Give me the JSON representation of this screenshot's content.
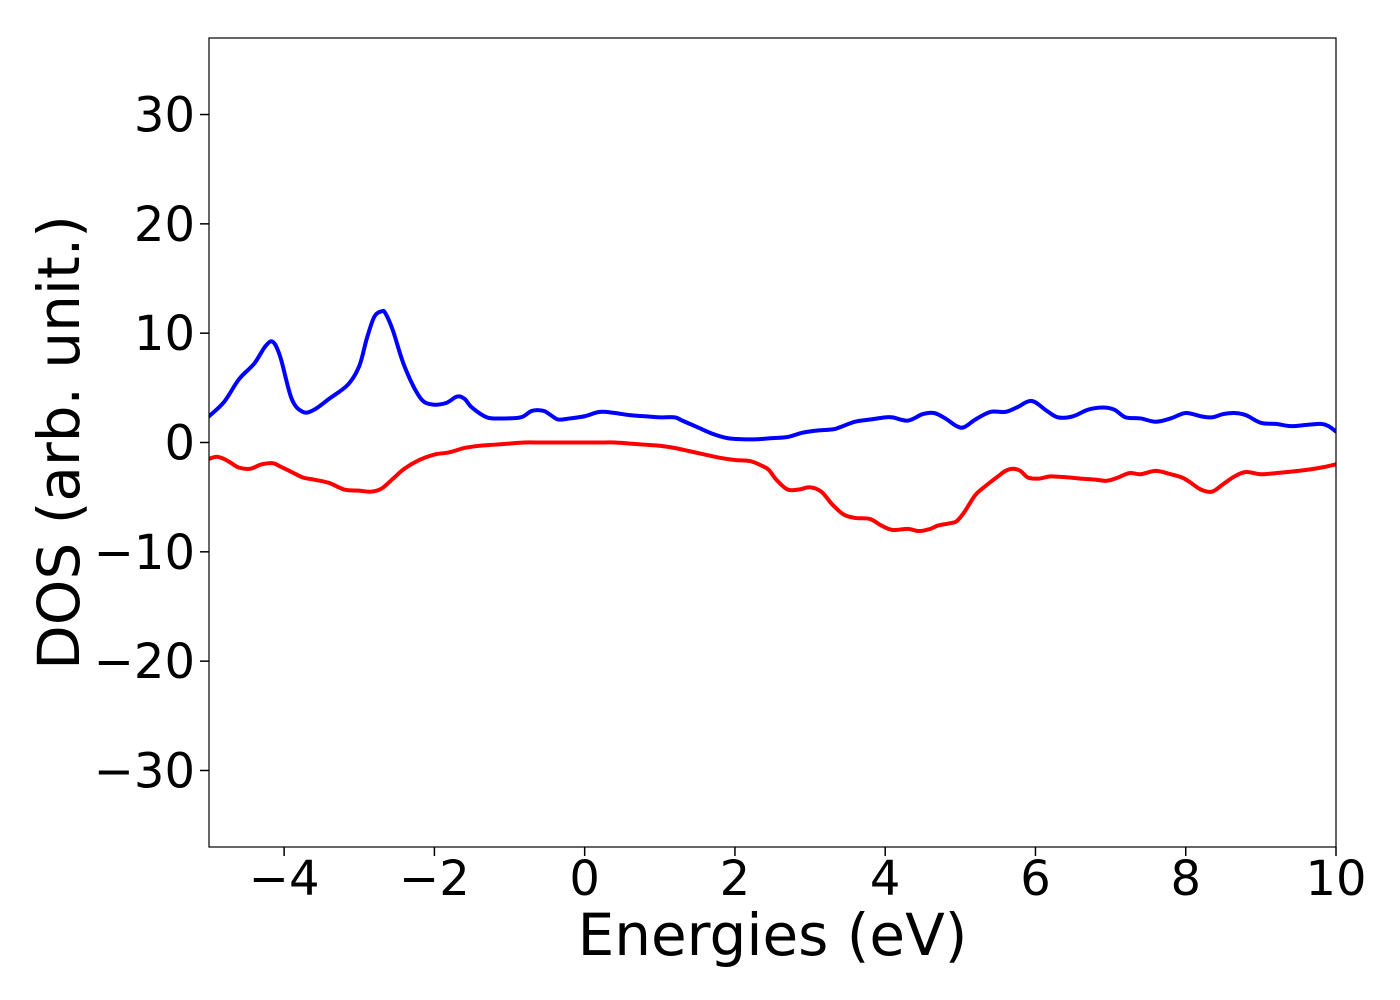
{
  "chart_data": {
    "type": "line",
    "title": "",
    "xlabel": "Energies (eV)",
    "ylabel": "DOS (arb. unit.)",
    "xlim": [
      -5,
      10
    ],
    "ylim": [
      -37,
      37
    ],
    "xticks": [
      -4,
      -2,
      0,
      2,
      4,
      6,
      8,
      10
    ],
    "xtick_labels": [
      "−4",
      "−2",
      "0",
      "2",
      "4",
      "6",
      "8",
      "10"
    ],
    "yticks": [
      -30,
      -20,
      -10,
      0,
      10,
      20,
      30
    ],
    "ytick_labels": [
      "−30",
      "−20",
      "−10",
      "0",
      "10",
      "20",
      "30"
    ],
    "grid": false,
    "legend": "none",
    "series": [
      {
        "color": "#0000ff",
        "x": [
          -5.0,
          -4.8,
          -4.6,
          -4.4,
          -4.25,
          -4.15,
          -4.05,
          -3.9,
          -3.75,
          -3.6,
          -3.4,
          -3.15,
          -3.0,
          -2.9,
          -2.8,
          -2.7,
          -2.65,
          -2.55,
          -2.4,
          -2.2,
          -2.05,
          -1.85,
          -1.7,
          -1.6,
          -1.5,
          -1.3,
          -1.1,
          -0.85,
          -0.7,
          -0.55,
          -0.45,
          -0.35,
          -0.2,
          0.0,
          0.2,
          0.4,
          0.6,
          0.8,
          1.0,
          1.2,
          1.3,
          1.5,
          1.7,
          1.9,
          2.1,
          2.3,
          2.5,
          2.7,
          2.9,
          3.1,
          3.3,
          3.4,
          3.6,
          3.8,
          4.0,
          4.1,
          4.3,
          4.5,
          4.65,
          4.8,
          4.95,
          5.05,
          5.2,
          5.4,
          5.6,
          5.75,
          5.95,
          6.15,
          6.3,
          6.5,
          6.7,
          6.9,
          7.05,
          7.2,
          7.4,
          7.6,
          7.8,
          8.0,
          8.2,
          8.35,
          8.5,
          8.65,
          8.8,
          9.0,
          9.2,
          9.4,
          9.6,
          9.8,
          9.9,
          10.0
        ],
        "values": [
          2.4,
          3.7,
          5.8,
          7.2,
          8.8,
          9.2,
          7.8,
          4.0,
          2.8,
          3.0,
          4.0,
          5.3,
          7.0,
          9.5,
          11.5,
          12.0,
          11.8,
          10.2,
          7.0,
          4.2,
          3.5,
          3.6,
          4.2,
          4.0,
          3.2,
          2.3,
          2.2,
          2.3,
          2.9,
          2.9,
          2.5,
          2.1,
          2.2,
          2.4,
          2.8,
          2.7,
          2.5,
          2.4,
          2.3,
          2.3,
          2.0,
          1.4,
          0.8,
          0.4,
          0.3,
          0.3,
          0.4,
          0.5,
          0.9,
          1.1,
          1.2,
          1.4,
          1.9,
          2.1,
          2.3,
          2.3,
          2.0,
          2.6,
          2.7,
          2.2,
          1.5,
          1.4,
          2.1,
          2.8,
          2.8,
          3.2,
          3.8,
          2.9,
          2.3,
          2.4,
          3.0,
          3.2,
          3.0,
          2.3,
          2.2,
          1.9,
          2.2,
          2.7,
          2.4,
          2.3,
          2.6,
          2.7,
          2.5,
          1.8,
          1.7,
          1.5,
          1.6,
          1.7,
          1.5,
          1.0
        ]
      },
      {
        "color": "#ff0000",
        "x": [
          -5.0,
          -4.9,
          -4.8,
          -4.7,
          -4.6,
          -4.45,
          -4.3,
          -4.15,
          -4.05,
          -3.9,
          -3.75,
          -3.6,
          -3.4,
          -3.2,
          -3.0,
          -2.85,
          -2.7,
          -2.55,
          -2.4,
          -2.2,
          -2.0,
          -1.8,
          -1.6,
          -1.4,
          -1.2,
          -1.0,
          -0.8,
          -0.6,
          -0.4,
          -0.2,
          0.0,
          0.2,
          0.4,
          0.6,
          0.8,
          1.0,
          1.2,
          1.4,
          1.6,
          1.8,
          2.0,
          2.2,
          2.35,
          2.45,
          2.55,
          2.7,
          2.85,
          3.0,
          3.15,
          3.3,
          3.45,
          3.6,
          3.8,
          3.95,
          4.1,
          4.3,
          4.45,
          4.6,
          4.7,
          4.85,
          4.95,
          5.05,
          5.2,
          5.35,
          5.5,
          5.6,
          5.7,
          5.8,
          5.9,
          6.05,
          6.2,
          6.45,
          6.6,
          6.8,
          6.95,
          7.1,
          7.25,
          7.4,
          7.6,
          7.8,
          7.95,
          8.05,
          8.2,
          8.35,
          8.5,
          8.65,
          8.8,
          9.0,
          9.2,
          9.5,
          9.8,
          10.0
        ],
        "values": [
          -1.5,
          -1.3,
          -1.5,
          -1.9,
          -2.3,
          -2.4,
          -2.0,
          -1.9,
          -2.2,
          -2.7,
          -3.2,
          -3.4,
          -3.7,
          -4.3,
          -4.4,
          -4.5,
          -4.2,
          -3.3,
          -2.4,
          -1.6,
          -1.1,
          -0.9,
          -0.5,
          -0.3,
          -0.2,
          -0.1,
          0.0,
          0.0,
          0.0,
          0.0,
          0.0,
          0.0,
          0.0,
          -0.1,
          -0.2,
          -0.3,
          -0.5,
          -0.8,
          -1.1,
          -1.4,
          -1.6,
          -1.7,
          -2.1,
          -2.5,
          -3.4,
          -4.3,
          -4.3,
          -4.1,
          -4.5,
          -5.7,
          -6.6,
          -6.9,
          -7.0,
          -7.6,
          -8.0,
          -7.9,
          -8.1,
          -7.9,
          -7.6,
          -7.4,
          -7.2,
          -6.4,
          -4.8,
          -3.9,
          -3.1,
          -2.6,
          -2.4,
          -2.6,
          -3.2,
          -3.3,
          -3.1,
          -3.2,
          -3.3,
          -3.4,
          -3.5,
          -3.2,
          -2.8,
          -2.9,
          -2.6,
          -2.9,
          -3.2,
          -3.6,
          -4.3,
          -4.5,
          -3.8,
          -3.1,
          -2.7,
          -2.9,
          -2.8,
          -2.6,
          -2.3,
          -2.0
        ]
      }
    ]
  }
}
